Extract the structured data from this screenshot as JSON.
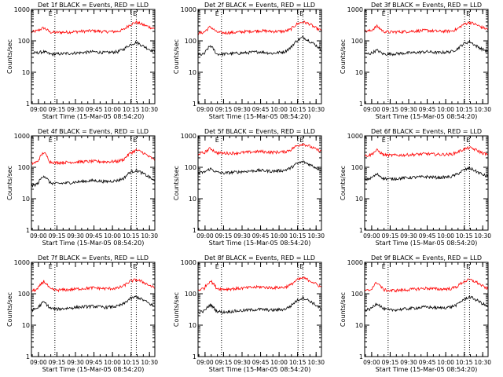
{
  "figure": {
    "xlabel": "Start Time (15-Mar-05 08:54:20)",
    "ylabel": "Counts/sec",
    "x_tick_labels": [
      "09:00",
      "09:15",
      "09:30",
      "09:45",
      "10:00",
      "10:15",
      "10:30"
    ],
    "y_tick_labels": [
      "1",
      "10",
      "100",
      "1000"
    ],
    "marker_label": "E",
    "colors": {
      "events": "#000000",
      "lld": "#ff0000",
      "axes": "#000000"
    }
  },
  "chart_data": [
    {
      "type": "line",
      "title": "Det 1f BLACK = Events, RED = LLD",
      "xlabel": "Start Time (15-Mar-05 08:54:20)",
      "ylabel": "Counts/sec",
      "x_unit": "minutes after 08:54:20",
      "xlim": [
        0,
        100
      ],
      "ylim": [
        1,
        1000
      ],
      "yscale": "log",
      "markers_x": [
        19,
        81,
        85
      ],
      "series": [
        {
          "name": "LLD",
          "color": "#ff0000",
          "x": [
            0,
            5,
            10,
            15,
            20,
            30,
            40,
            50,
            60,
            70,
            75,
            80,
            85,
            90,
            95,
            100
          ],
          "values": [
            190,
            210,
            260,
            190,
            185,
            190,
            200,
            210,
            195,
            200,
            230,
            330,
            390,
            330,
            280,
            240
          ]
        },
        {
          "name": "Events",
          "color": "#000000",
          "x": [
            0,
            5,
            10,
            15,
            20,
            30,
            40,
            50,
            60,
            70,
            75,
            80,
            85,
            90,
            95,
            100
          ],
          "values": [
            40,
            42,
            45,
            38,
            38,
            40,
            42,
            45,
            42,
            45,
            55,
            75,
            90,
            70,
            55,
            45
          ]
        }
      ]
    },
    {
      "type": "line",
      "title": "Det 2f BLACK = Events, RED = LLD",
      "xlabel": "Start Time (15-Mar-05 08:54:20)",
      "ylabel": "Counts/sec",
      "x_unit": "minutes after 08:54:20",
      "xlim": [
        0,
        100
      ],
      "ylim": [
        1,
        1000
      ],
      "yscale": "log",
      "markers_x": [
        19,
        81,
        85
      ],
      "series": [
        {
          "name": "LLD",
          "color": "#ff0000",
          "x": [
            0,
            5,
            10,
            15,
            20,
            30,
            40,
            50,
            60,
            70,
            75,
            80,
            85,
            90,
            95,
            100
          ],
          "values": [
            170,
            190,
            280,
            190,
            180,
            185,
            200,
            210,
            200,
            200,
            230,
            340,
            400,
            350,
            260,
            210
          ]
        },
        {
          "name": "Events",
          "color": "#000000",
          "x": [
            0,
            5,
            10,
            15,
            20,
            30,
            40,
            50,
            60,
            70,
            75,
            80,
            85,
            90,
            95,
            100
          ],
          "values": [
            35,
            38,
            70,
            38,
            38,
            40,
            42,
            45,
            40,
            45,
            60,
            100,
            130,
            100,
            75,
            50
          ]
        }
      ]
    },
    {
      "type": "line",
      "title": "Det 3f BLACK = Events, RED = LLD",
      "xlabel": "Start Time (15-Mar-05 08:54:20)",
      "ylabel": "Counts/sec",
      "x_unit": "minutes after 08:54:20",
      "xlim": [
        0,
        100
      ],
      "ylim": [
        1,
        1000
      ],
      "yscale": "log",
      "markers_x": [
        19,
        81,
        85
      ],
      "series": [
        {
          "name": "LLD",
          "color": "#ff0000",
          "x": [
            0,
            5,
            10,
            15,
            20,
            30,
            40,
            50,
            60,
            70,
            75,
            80,
            85,
            90,
            95,
            100
          ],
          "values": [
            200,
            210,
            290,
            200,
            190,
            195,
            205,
            215,
            200,
            205,
            235,
            330,
            390,
            330,
            270,
            230
          ]
        },
        {
          "name": "Events",
          "color": "#000000",
          "x": [
            0,
            5,
            10,
            15,
            20,
            30,
            40,
            50,
            60,
            70,
            75,
            80,
            85,
            90,
            95,
            100
          ],
          "values": [
            38,
            40,
            50,
            38,
            38,
            40,
            42,
            45,
            42,
            45,
            55,
            80,
            95,
            70,
            55,
            45
          ]
        }
      ]
    },
    {
      "type": "line",
      "title": "Det 4f BLACK = Events, RED = LLD",
      "xlabel": "Start Time (15-Mar-05 08:54:20)",
      "ylabel": "Counts/sec",
      "x_unit": "minutes after 08:54:20",
      "xlim": [
        0,
        100
      ],
      "ylim": [
        1,
        1000
      ],
      "yscale": "log",
      "markers_x": [
        19,
        81,
        85
      ],
      "series": [
        {
          "name": "LLD",
          "color": "#ff0000",
          "x": [
            0,
            5,
            10,
            15,
            20,
            30,
            40,
            50,
            60,
            70,
            75,
            80,
            85,
            90,
            95,
            100
          ],
          "values": [
            130,
            150,
            300,
            150,
            140,
            145,
            150,
            155,
            150,
            155,
            180,
            280,
            350,
            300,
            220,
            170
          ]
        },
        {
          "name": "Events",
          "color": "#000000",
          "x": [
            0,
            5,
            10,
            15,
            20,
            30,
            40,
            50,
            60,
            70,
            75,
            80,
            85,
            90,
            95,
            100
          ],
          "values": [
            25,
            30,
            55,
            32,
            30,
            32,
            35,
            38,
            35,
            38,
            45,
            70,
            80,
            65,
            50,
            35
          ]
        }
      ]
    },
    {
      "type": "line",
      "title": "Det 5f BLACK = Events, RED = LLD",
      "xlabel": "Start Time (15-Mar-05 08:54:20)",
      "ylabel": "Counts/sec",
      "x_unit": "minutes after 08:54:20",
      "xlim": [
        0,
        100
      ],
      "ylim": [
        1,
        1000
      ],
      "yscale": "log",
      "markers_x": [
        19,
        81,
        85
      ],
      "series": [
        {
          "name": "LLD",
          "color": "#ff0000",
          "x": [
            0,
            5,
            10,
            15,
            20,
            30,
            40,
            50,
            60,
            70,
            75,
            80,
            85,
            90,
            95,
            100
          ],
          "values": [
            270,
            290,
            400,
            290,
            280,
            285,
            300,
            320,
            300,
            310,
            360,
            480,
            560,
            470,
            380,
            320
          ]
        },
        {
          "name": "Events",
          "color": "#000000",
          "x": [
            0,
            5,
            10,
            15,
            20,
            30,
            40,
            50,
            60,
            70,
            75,
            80,
            85,
            90,
            95,
            100
          ],
          "values": [
            65,
            70,
            90,
            70,
            65,
            70,
            75,
            80,
            75,
            80,
            95,
            130,
            150,
            125,
            100,
            80
          ]
        }
      ]
    },
    {
      "type": "line",
      "title": "Det 6f BLACK = Events, RED = LLD",
      "xlabel": "Start Time (15-Mar-05 08:54:20)",
      "ylabel": "Counts/sec",
      "x_unit": "minutes after 08:54:20",
      "xlim": [
        0,
        100
      ],
      "ylim": [
        1,
        1000
      ],
      "yscale": "log",
      "markers_x": [
        19,
        81,
        85
      ],
      "series": [
        {
          "name": "LLD",
          "color": "#ff0000",
          "x": [
            0,
            5,
            10,
            15,
            20,
            30,
            40,
            50,
            60,
            70,
            75,
            80,
            85,
            90,
            95,
            100
          ],
          "values": [
            230,
            250,
            350,
            250,
            240,
            245,
            255,
            270,
            255,
            260,
            300,
            370,
            420,
            360,
            290,
            250
          ]
        },
        {
          "name": "Events",
          "color": "#000000",
          "x": [
            0,
            5,
            10,
            15,
            20,
            30,
            40,
            50,
            60,
            70,
            75,
            80,
            85,
            90,
            95,
            100
          ],
          "values": [
            40,
            45,
            60,
            45,
            42,
            45,
            48,
            50,
            47,
            50,
            60,
            80,
            95,
            75,
            60,
            50
          ]
        }
      ]
    },
    {
      "type": "line",
      "title": "Det 7f BLACK = Events, RED = LLD",
      "xlabel": "Start Time (15-Mar-05 08:54:20)",
      "ylabel": "Counts/sec",
      "x_unit": "minutes after 08:54:20",
      "xlim": [
        0,
        100
      ],
      "ylim": [
        1,
        1000
      ],
      "yscale": "log",
      "markers_x": [
        19,
        81,
        85
      ],
      "series": [
        {
          "name": "LLD",
          "color": "#ff0000",
          "x": [
            0,
            5,
            10,
            15,
            20,
            30,
            40,
            50,
            60,
            70,
            75,
            80,
            85,
            90,
            95,
            100
          ],
          "values": [
            120,
            140,
            250,
            140,
            130,
            135,
            145,
            155,
            145,
            150,
            180,
            250,
            280,
            240,
            190,
            150
          ]
        },
        {
          "name": "Events",
          "color": "#000000",
          "x": [
            0,
            5,
            10,
            15,
            20,
            30,
            40,
            50,
            60,
            70,
            75,
            80,
            85,
            90,
            95,
            100
          ],
          "values": [
            30,
            35,
            55,
            35,
            32,
            35,
            38,
            40,
            37,
            40,
            48,
            70,
            80,
            65,
            50,
            38
          ]
        }
      ]
    },
    {
      "type": "line",
      "title": "Det 8f BLACK = Events, RED = LLD",
      "xlabel": "Start Time (15-Mar-05 08:54:20)",
      "ylabel": "Counts/sec",
      "x_unit": "minutes after 08:54:20",
      "xlim": [
        0,
        100
      ],
      "ylim": [
        1,
        1000
      ],
      "yscale": "log",
      "markers_x": [
        19,
        81,
        85
      ],
      "series": [
        {
          "name": "LLD",
          "color": "#ff0000",
          "x": [
            0,
            5,
            10,
            15,
            20,
            30,
            40,
            50,
            60,
            70,
            75,
            80,
            85,
            90,
            95,
            100
          ],
          "values": [
            130,
            150,
            260,
            150,
            140,
            145,
            155,
            165,
            155,
            160,
            190,
            270,
            320,
            270,
            210,
            160
          ]
        },
        {
          "name": "Events",
          "color": "#000000",
          "x": [
            0,
            5,
            10,
            15,
            20,
            30,
            40,
            50,
            60,
            70,
            75,
            80,
            85,
            90,
            95,
            100
          ],
          "values": [
            25,
            28,
            45,
            28,
            26,
            28,
            30,
            32,
            30,
            32,
            40,
            60,
            75,
            60,
            45,
            32
          ]
        }
      ]
    },
    {
      "type": "line",
      "title": "Det 9f BLACK = Events, RED = LLD",
      "xlabel": "Start Time (15-Mar-05 08:54:20)",
      "ylabel": "Counts/sec",
      "x_unit": "minutes after 08:54:20",
      "xlim": [
        0,
        100
      ],
      "ylim": [
        1,
        1000
      ],
      "yscale": "log",
      "markers_x": [
        19,
        81,
        85
      ],
      "series": [
        {
          "name": "LLD",
          "color": "#ff0000",
          "x": [
            0,
            5,
            10,
            15,
            20,
            30,
            40,
            50,
            60,
            70,
            75,
            80,
            85,
            90,
            95,
            100
          ],
          "values": [
            120,
            135,
            230,
            135,
            125,
            130,
            140,
            150,
            140,
            145,
            170,
            240,
            280,
            240,
            180,
            140
          ]
        },
        {
          "name": "Events",
          "color": "#000000",
          "x": [
            0,
            5,
            10,
            15,
            20,
            30,
            40,
            50,
            60,
            70,
            75,
            80,
            85,
            90,
            95,
            100
          ],
          "values": [
            30,
            33,
            50,
            33,
            30,
            32,
            35,
            38,
            35,
            38,
            45,
            65,
            80,
            65,
            50,
            38
          ]
        }
      ]
    }
  ]
}
